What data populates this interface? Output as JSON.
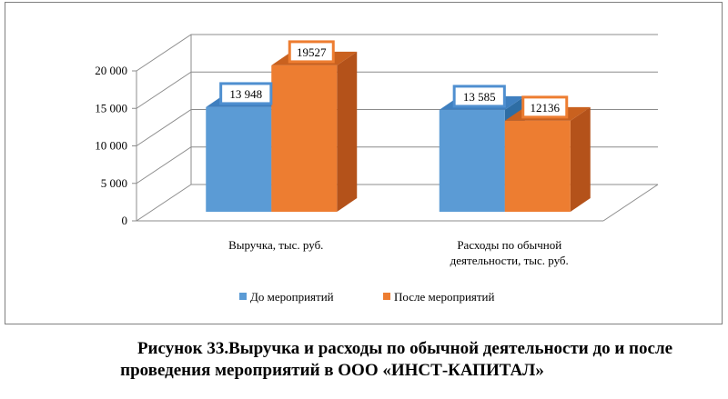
{
  "chart_data": {
    "type": "bar",
    "style": "3d-clustered-column",
    "categories": [
      "Выручка, тыс. руб.",
      "Расходы по обычной деятельности, тыс. руб."
    ],
    "category_lines": [
      [
        "Выручка, тыс. руб."
      ],
      [
        "Расходы по обычной",
        "деятельности, тыс. руб."
      ]
    ],
    "series": [
      {
        "name": "До мероприятий",
        "values": [
          13948,
          13585
        ],
        "labels": [
          "13 948",
          "13 585"
        ],
        "color": "#5b9bd5",
        "side_color": "#2e6da4",
        "top_color": "#3f7fbf",
        "label_border": "#4f8fd0"
      },
      {
        "name": "После мероприятий",
        "values": [
          19527,
          12136
        ],
        "labels": [
          "19527",
          "12136"
        ],
        "color": "#ed7d31",
        "side_color": "#b4521a",
        "top_color": "#c9611f",
        "label_border": "#ed7d31"
      }
    ],
    "yticks": [
      "0",
      "5 000",
      "10 000",
      "15 000",
      "20 000"
    ],
    "ylim": [
      0,
      20000
    ],
    "legend_position": "bottom",
    "grid": true
  },
  "caption": {
    "line1": "Рисунок 33.Выручка и расходы по обычной деятельности до и после",
    "line2": "проведения мероприятий в ООО «ИНСТ-КАПИТАЛ»"
  }
}
